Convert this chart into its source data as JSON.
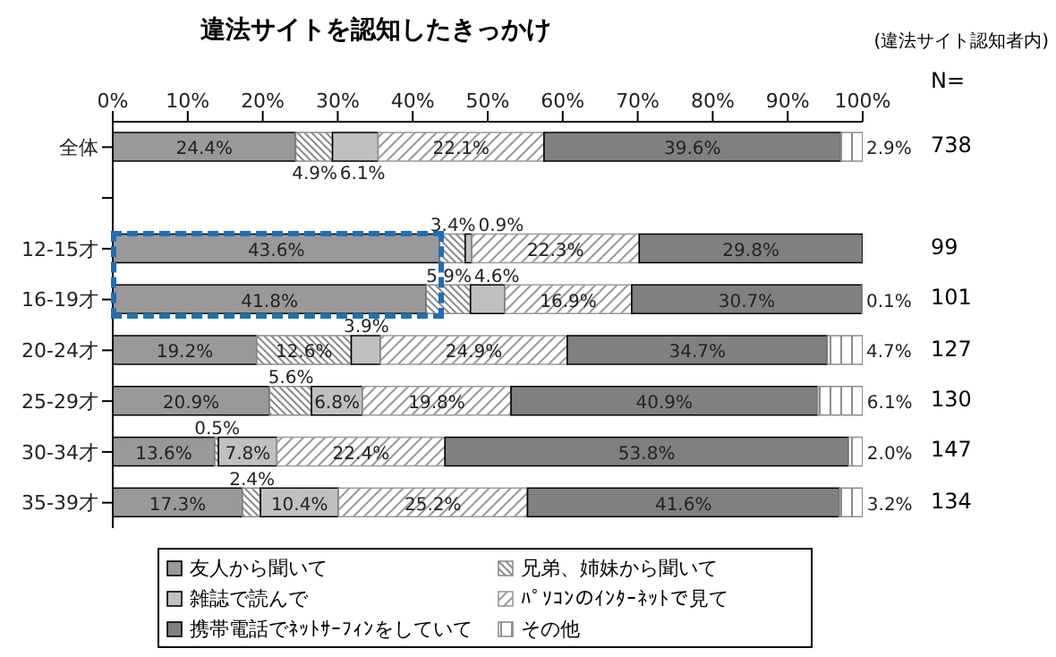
{
  "chart_data": {
    "type": "bar",
    "orientation": "horizontal",
    "stacked": true,
    "title": "違法サイトを認知したきっかけ",
    "subtitle": "(違法サイト認知者内)",
    "categories": [
      "全体",
      null,
      "12-15才",
      "16-19才",
      "20-24才",
      "25-29才",
      "30-34才",
      "35-39才"
    ],
    "xlim": [
      0,
      100
    ],
    "xticks": [
      {
        "value": 0,
        "label": "0%"
      },
      {
        "value": 10,
        "label": "10%"
      },
      {
        "value": 20,
        "label": "20%"
      },
      {
        "value": 30,
        "label": "30%"
      },
      {
        "value": 40,
        "label": "40%"
      },
      {
        "value": 50,
        "label": "50%"
      },
      {
        "value": 60,
        "label": "60%"
      },
      {
        "value": 70,
        "label": "70%"
      },
      {
        "value": 80,
        "label": "80%"
      },
      {
        "value": 90,
        "label": "90%"
      },
      {
        "value": 100,
        "label": "100%"
      }
    ],
    "series": [
      {
        "name": "友人から聞いて",
        "color": "#999999",
        "values": [
          24.4,
          null,
          43.6,
          41.8,
          19.2,
          20.9,
          13.6,
          17.3
        ],
        "value_labels": [
          "24.4%",
          null,
          "43.6%",
          "41.8%",
          "19.2%",
          "20.9%",
          "13.6%",
          "17.3%"
        ]
      },
      {
        "name": "兄弟、姉妹から聞いて",
        "color": "#8c8c8c",
        "values": [
          4.9,
          null,
          3.4,
          5.9,
          12.6,
          5.6,
          0.5,
          2.4
        ],
        "value_labels": [
          "4.9%",
          null,
          "3.4%",
          "5.9%",
          "12.6%",
          "5.6%",
          "0.5%",
          "2.4%"
        ]
      },
      {
        "name": "雑誌で読んで",
        "color": "#c0c0c0",
        "values": [
          6.1,
          null,
          0.9,
          4.6,
          3.9,
          6.8,
          7.8,
          10.4
        ],
        "value_labels": [
          "6.1%",
          null,
          "0.9%",
          "4.6%",
          "3.9%",
          "6.8%",
          "7.8%",
          "10.4%"
        ]
      },
      {
        "name": "ﾊﾟｿｺﾝのｲﾝﾀｰﾈｯﾄで見て",
        "color": "#9a9a9a",
        "values": [
          22.1,
          null,
          22.3,
          16.9,
          24.9,
          19.8,
          22.4,
          25.2
        ],
        "value_labels": [
          "22.1%",
          null,
          "22.3%",
          "16.9%",
          "24.9%",
          "19.8%",
          "22.4%",
          "25.2%"
        ]
      },
      {
        "name": "携帯電話でﾈｯﾄｻｰﾌｨﾝをしていて",
        "color": "#808080",
        "values": [
          39.6,
          null,
          29.8,
          30.7,
          34.7,
          40.9,
          53.8,
          41.6
        ],
        "value_labels": [
          "39.6%",
          null,
          "29.8%",
          "30.7%",
          "34.7%",
          "40.9%",
          "53.8%",
          "41.6%"
        ]
      },
      {
        "name": "その他",
        "color": "#8c8c8c",
        "values": [
          2.9,
          null,
          null,
          0.1,
          4.7,
          6.1,
          2.0,
          3.2
        ],
        "value_labels": [
          "2.9%",
          null,
          null,
          "0.1%",
          "4.7%",
          "6.1%",
          "2.0%",
          "3.2%"
        ]
      }
    ],
    "legend": "bottom",
    "annotations": [
      "N=",
      "738",
      "99",
      "101",
      "127",
      "130",
      "147",
      "134"
    ]
  }
}
